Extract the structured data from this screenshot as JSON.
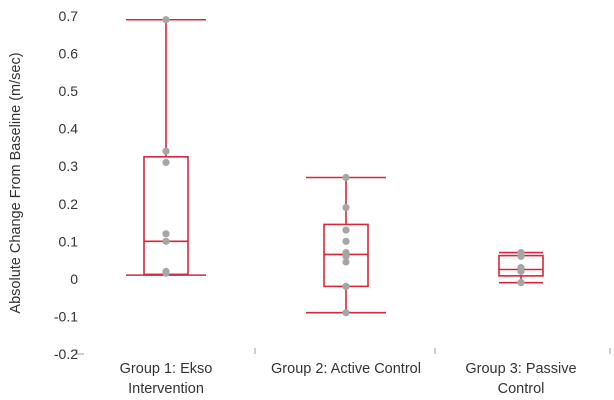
{
  "chart_data": {
    "type": "box",
    "ylabel": "Absolute Change From Baseline (m/sec)",
    "ylim": [
      -0.2,
      0.7
    ],
    "yticks": [
      -0.2,
      -0.1,
      0,
      0.1,
      0.2,
      0.3,
      0.4,
      0.5,
      0.6,
      0.7
    ],
    "ytick_labels": [
      "-0.2",
      "-0.1",
      "0",
      "0.1",
      "0.2",
      "0.3",
      "0.4",
      "0.5",
      "0.6",
      "0.7"
    ],
    "grid": false,
    "legend": "none",
    "colors": {
      "box": "#d7263d",
      "points": "#a6a6a6",
      "axis": "#9e9e9e"
    },
    "categories": [
      [
        "Group 1: Ekso",
        "Intervention"
      ],
      [
        "Group 2: Active Control"
      ],
      [
        "Group 3: Passive",
        "Control"
      ]
    ],
    "boxes": [
      {
        "min": 0.01,
        "q1": 0.012,
        "median": 0.1,
        "q3": 0.325,
        "max": 0.69
      },
      {
        "min": -0.09,
        "q1": -0.02,
        "median": 0.065,
        "q3": 0.145,
        "max": 0.27
      },
      {
        "min": -0.01,
        "q1": 0.008,
        "median": 0.025,
        "q3": 0.062,
        "max": 0.07
      }
    ],
    "points": [
      [
        0.69,
        0.34,
        0.31,
        0.12,
        0.1,
        0.02,
        0.015
      ],
      [
        0.27,
        0.19,
        0.13,
        0.1,
        0.07,
        0.06,
        0.045,
        -0.02,
        -0.09
      ],
      [
        0.07,
        0.06,
        0.03,
        0.02,
        -0.01
      ]
    ]
  }
}
